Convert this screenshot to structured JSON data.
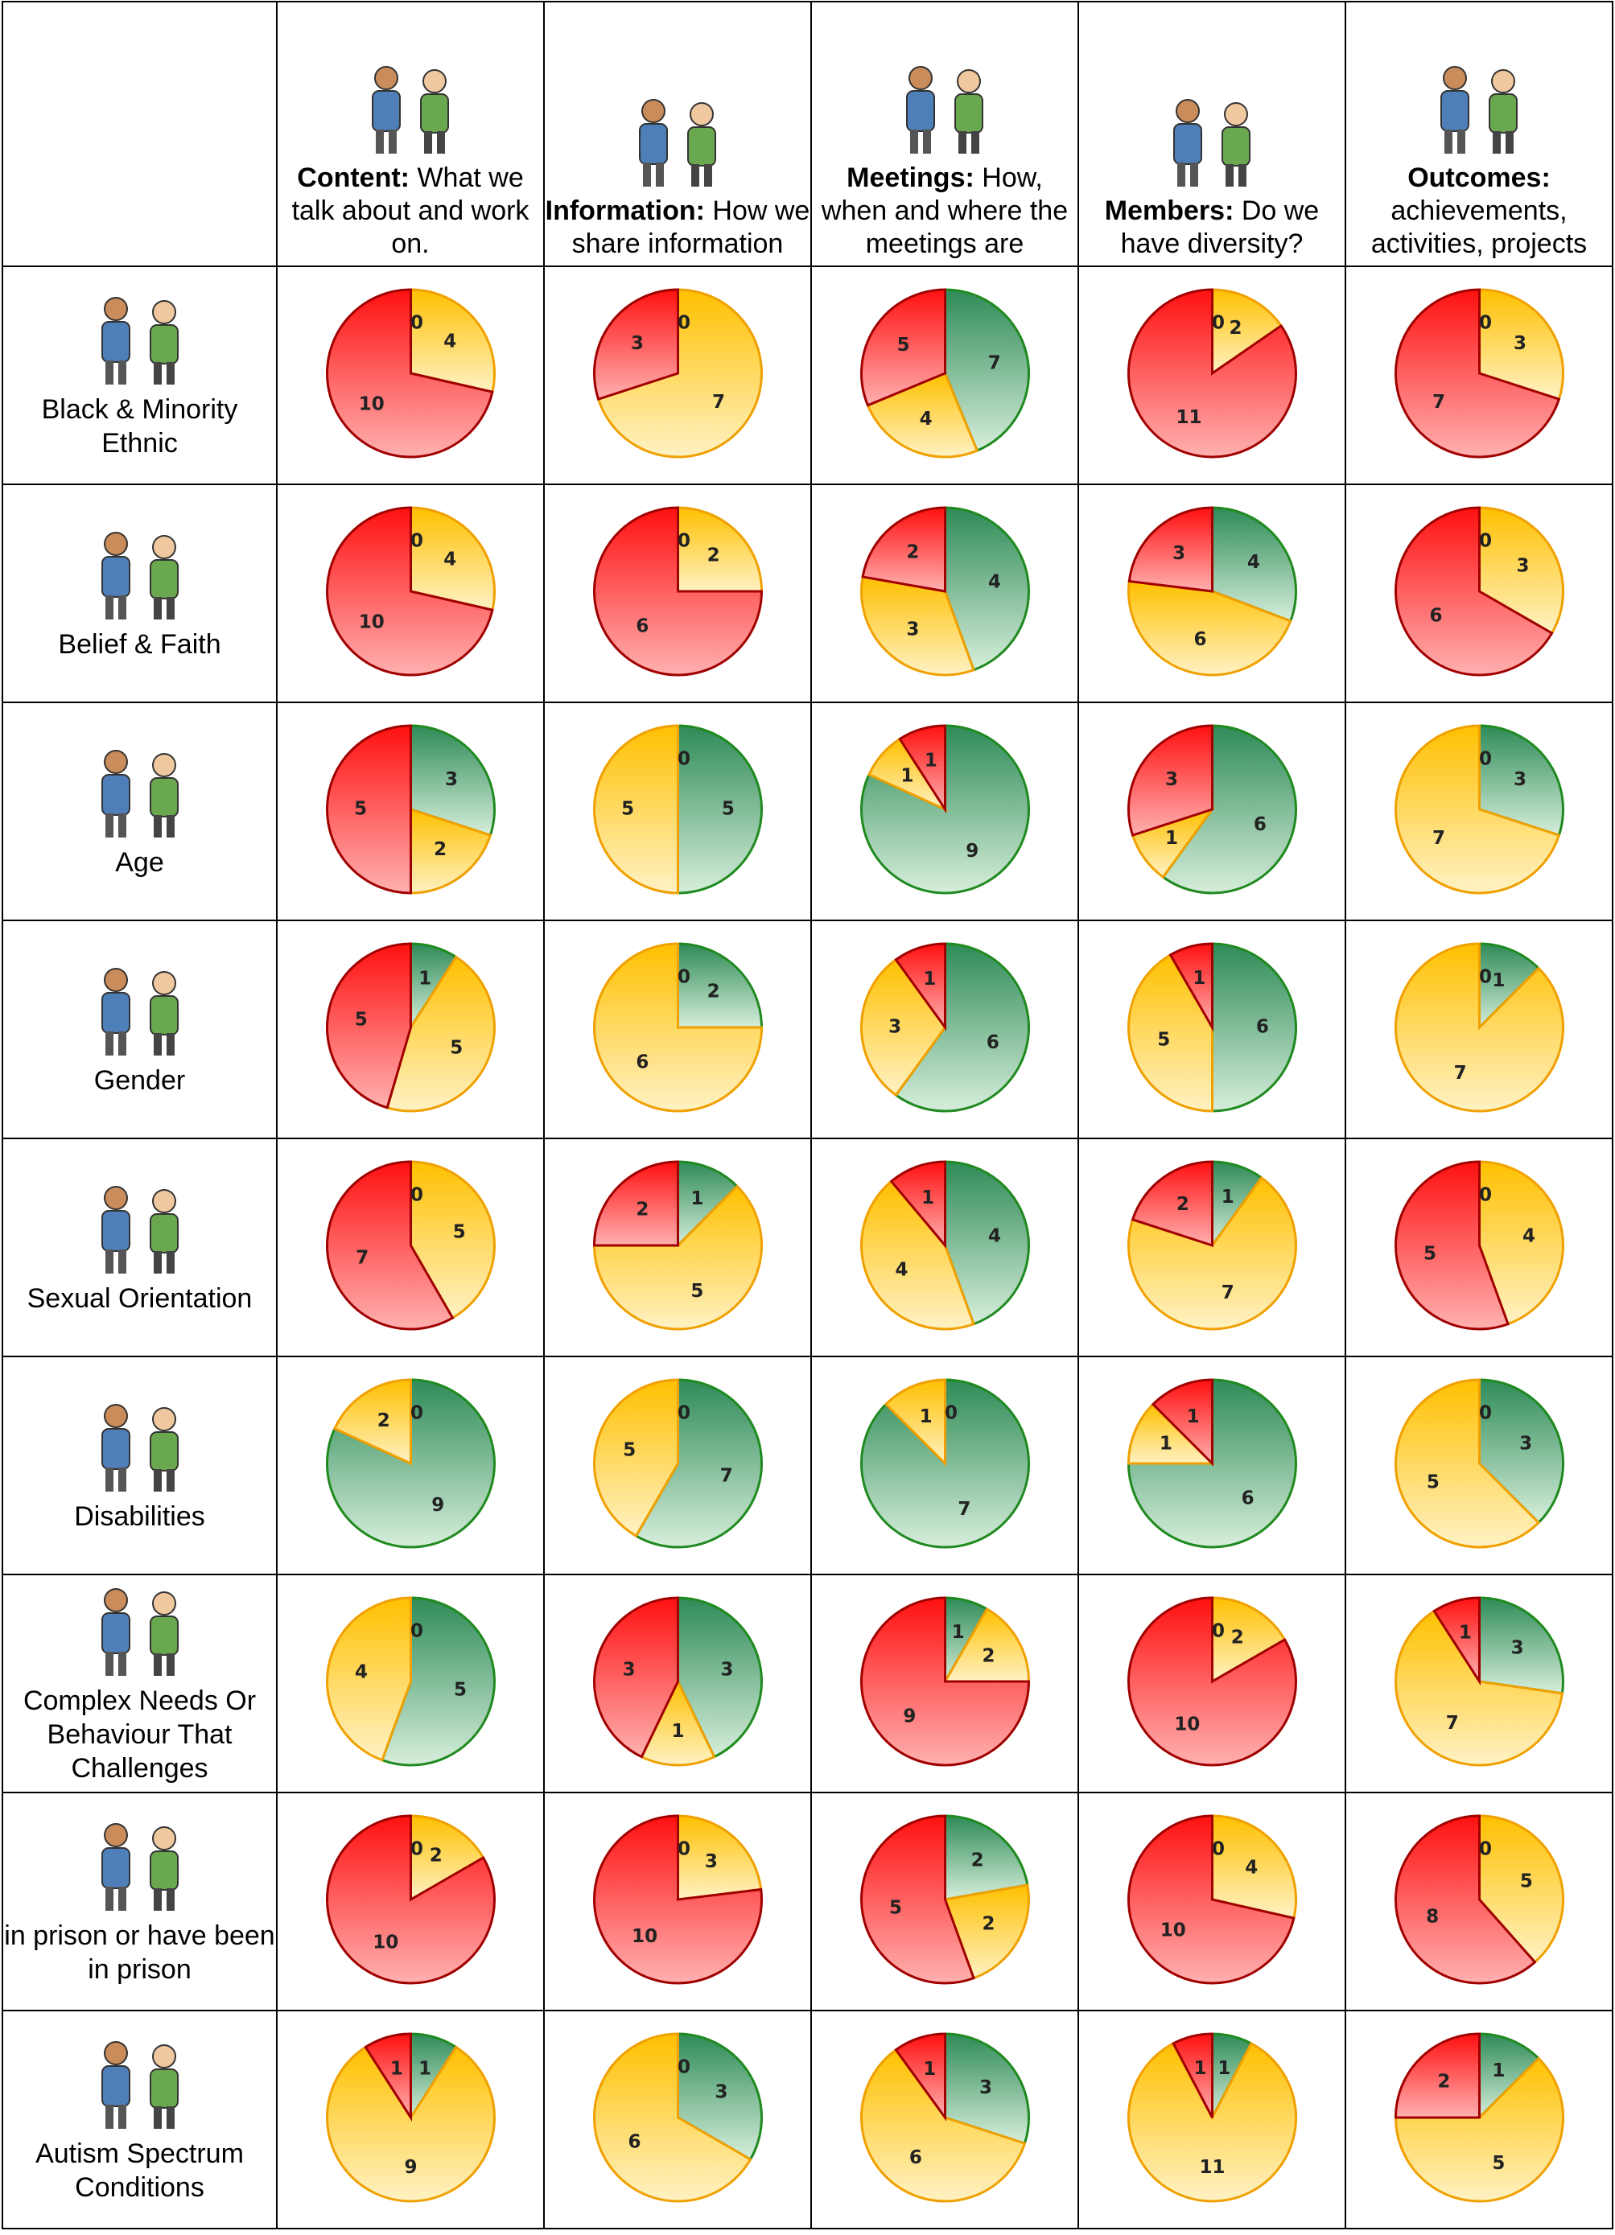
{
  "header": {
    "columns": [
      {
        "bold": "Content:",
        "text": "What we talk about and work on."
      },
      {
        "bold": "Information:",
        "text": "How we share information"
      },
      {
        "bold": "Meetings:",
        "text": "How, when and where the meetings are"
      },
      {
        "bold": "Members:",
        "text": "Do we have diversity?"
      },
      {
        "bold": "Outcomes:",
        "text": "achievements, activities, projects"
      }
    ]
  },
  "rows": [
    {
      "label": "Black & Minority Ethnic",
      "pies": [
        [
          0,
          4,
          10
        ],
        [
          0,
          7,
          3
        ],
        [
          7,
          4,
          5
        ],
        [
          0,
          2,
          11
        ],
        [
          0,
          3,
          7
        ]
      ]
    },
    {
      "label": "Belief & Faith",
      "pies": [
        [
          0,
          4,
          10
        ],
        [
          0,
          2,
          6
        ],
        [
          4,
          3,
          2
        ],
        [
          4,
          6,
          3
        ],
        [
          0,
          3,
          6
        ]
      ]
    },
    {
      "label": "Age",
      "pies": [
        [
          3,
          2,
          5
        ],
        [
          5,
          5,
          0
        ],
        [
          9,
          1,
          1
        ],
        [
          6,
          1,
          3
        ],
        [
          3,
          7,
          0
        ]
      ]
    },
    {
      "label": "Gender",
      "pies": [
        [
          1,
          5,
          5
        ],
        [
          2,
          6,
          0
        ],
        [
          6,
          3,
          1
        ],
        [
          6,
          5,
          1
        ],
        [
          1,
          7,
          0
        ]
      ]
    },
    {
      "label": "Sexual Orientation",
      "pies": [
        [
          0,
          5,
          7
        ],
        [
          1,
          5,
          2
        ],
        [
          4,
          4,
          1
        ],
        [
          1,
          7,
          2
        ],
        [
          0,
          4,
          5
        ]
      ]
    },
    {
      "label": "Disabilities",
      "pies": [
        [
          9,
          2,
          0
        ],
        [
          7,
          5,
          0
        ],
        [
          7,
          1,
          0
        ],
        [
          6,
          1,
          1
        ],
        [
          3,
          5,
          0
        ]
      ]
    },
    {
      "label": "Complex Needs Or Behaviour That Challenges",
      "pies": [
        [
          5,
          4,
          0
        ],
        [
          3,
          1,
          3
        ],
        [
          1,
          2,
          9
        ],
        [
          0,
          2,
          10
        ],
        [
          3,
          7,
          1
        ]
      ]
    },
    {
      "label": "in prison or have been in prison",
      "pies": [
        [
          0,
          2,
          10
        ],
        [
          0,
          3,
          10
        ],
        [
          2,
          2,
          5
        ],
        [
          0,
          4,
          10
        ],
        [
          0,
          5,
          8
        ]
      ]
    },
    {
      "label": "Autism Spectrum Conditions",
      "pies": [
        [
          1,
          9,
          1
        ],
        [
          3,
          6,
          0
        ],
        [
          3,
          6,
          1
        ],
        [
          1,
          11,
          1
        ],
        [
          1,
          5,
          2
        ]
      ]
    }
  ]
}
